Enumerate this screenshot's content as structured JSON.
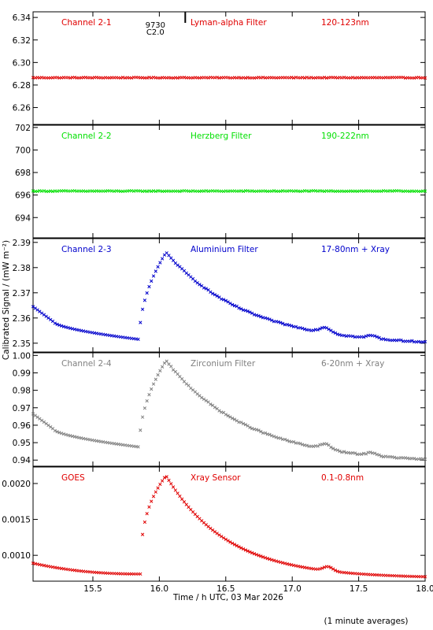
{
  "footer_note": "(1 minute averages)",
  "colors": {
    "red": "#e00000",
    "green": "#00e000",
    "blue": "#0000cc",
    "grey": "#808080",
    "frame": "#000000"
  },
  "chart_data": [
    {
      "type": "scatter",
      "panel": "Channel 2-1",
      "labels": [
        "Channel 2-1",
        "Lyman-alpha Filter",
        "120-123nm"
      ],
      "label_color": "#e00000",
      "series_color": "#e00000",
      "ylim": [
        6.245,
        6.345
      ],
      "yticks": [
        6.26,
        6.28,
        6.3,
        6.32,
        6.34
      ],
      "ytick_labels": [
        "6.26",
        "6.28",
        "6.30",
        "6.32",
        "6.34"
      ],
      "annotation": {
        "lines": [
          "9730",
          "C2.0"
        ],
        "x": 15.97
      },
      "shape": {
        "kind": "flat",
        "level": 6.2865
      }
    },
    {
      "type": "scatter",
      "panel": "Channel 2-2",
      "labels": [
        "Channel 2-2",
        "Herzberg Filter",
        "190-222nm"
      ],
      "label_color": "#00e000",
      "series_color": "#00e000",
      "ylim": [
        692.2,
        702.2
      ],
      "yticks": [
        694,
        696,
        698,
        700,
        702
      ],
      "ytick_labels": [
        "694",
        "696",
        "698",
        "700",
        "702"
      ],
      "shape": {
        "kind": "flat",
        "level": 696.35
      }
    },
    {
      "type": "scatter",
      "panel": "Channel 2-3",
      "labels": [
        "Channel 2-3",
        "Aluminium Filter",
        "17-80nm + Xray"
      ],
      "label_color": "#0000cc",
      "series_color": "#0000cc",
      "ylim": [
        2.3465,
        2.3915
      ],
      "yticks": [
        2.35,
        2.36,
        2.37,
        2.38,
        2.39
      ],
      "ytick_labels": [
        "2.35",
        "2.36",
        "2.37",
        "2.38",
        "2.39"
      ],
      "shape": {
        "kind": "flare",
        "start": 2.3645,
        "pre_flare": 2.3515,
        "peak": 2.386,
        "end": 2.349
      }
    },
    {
      "type": "scatter",
      "panel": "Channel 2-4",
      "labels": [
        "Channel 2-4",
        "Zirconium Filter",
        "6-20nm + Xray"
      ],
      "label_color": "#808080",
      "series_color": "#808080",
      "ylim": [
        0.9365,
        1.0015
      ],
      "yticks": [
        0.94,
        0.95,
        0.96,
        0.97,
        0.98,
        0.99,
        1.0
      ],
      "ytick_labels": [
        "0.94",
        "0.95",
        "0.96",
        "0.97",
        "0.98",
        "0.99",
        "1.00"
      ],
      "shape": {
        "kind": "flare",
        "start": 0.9665,
        "pre_flare": 0.9475,
        "peak": 0.997,
        "end": 0.938
      }
    },
    {
      "type": "scatter",
      "panel": "GOES",
      "labels": [
        "GOES",
        "Xray Sensor",
        "0.1-0.8nm"
      ],
      "label_color": "#e00000",
      "series_color": "#e00000",
      "ylim": [
        0.00064,
        0.00223
      ],
      "yticks": [
        0.001,
        0.0015,
        0.002
      ],
      "ytick_labels": [
        "0.0010",
        "0.0015",
        "0.0020"
      ],
      "shape": {
        "kind": "goes",
        "start": 0.00089,
        "pre_flare": 0.00074,
        "peak": 0.00211,
        "end": 0.00068
      }
    }
  ],
  "x_axis": {
    "xlim": [
      15.05,
      18.0
    ],
    "ticks": [
      15.5,
      16.0,
      16.5,
      17.0,
      17.5,
      18.0
    ],
    "tick_labels": [
      "15.5",
      "16.0",
      "16.5",
      "17.0",
      "17.5",
      "18.0"
    ],
    "xlabel": "Time / h UTC, 03 Mar 2026"
  },
  "ylabel": "Calibrated Signal / (mW m⁻²)"
}
